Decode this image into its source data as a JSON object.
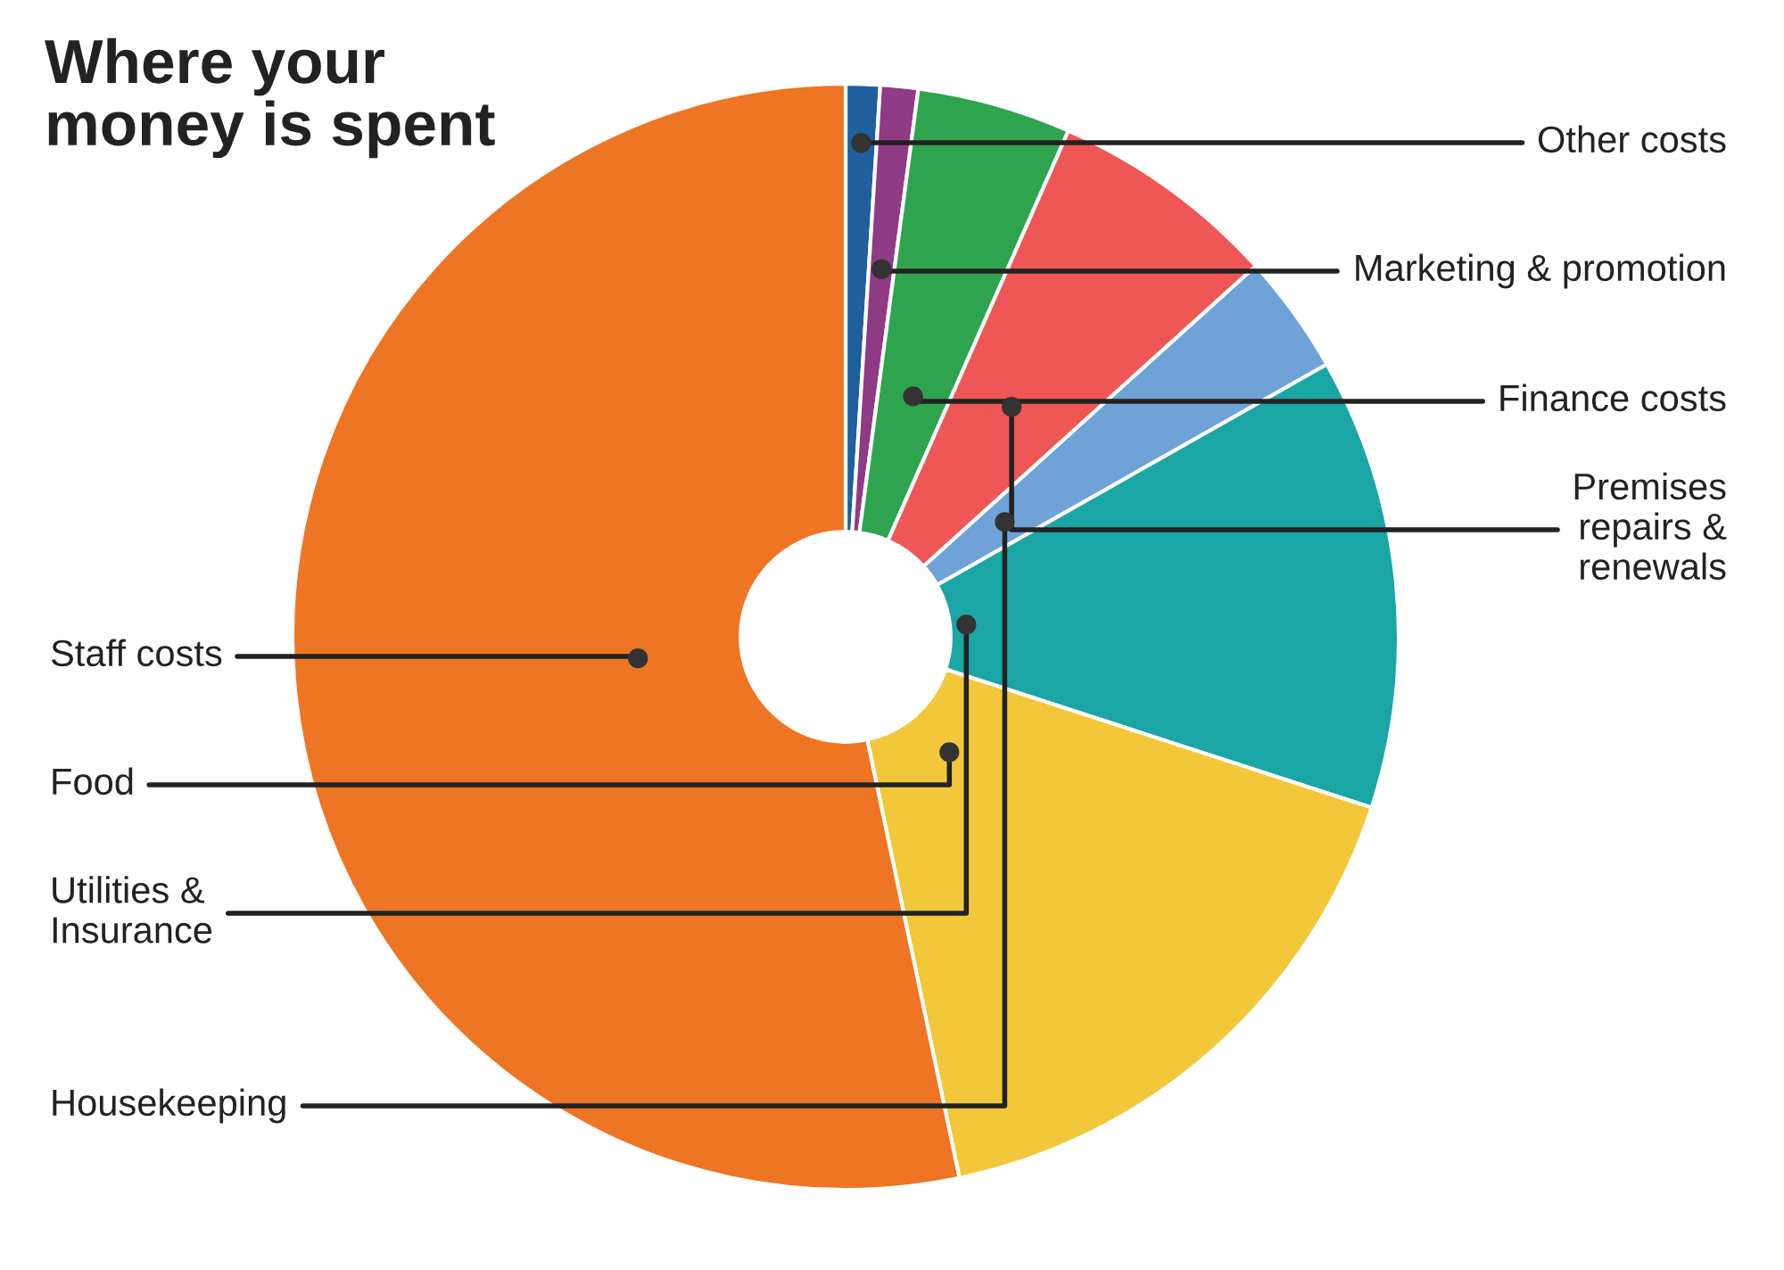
{
  "chart_data": {
    "type": "donut",
    "title": "Where your\nmoney is spent",
    "categories": [
      "Other costs",
      "Marketing & promotion",
      "Finance costs",
      "Premises\nrepairs &\nrenewals",
      "Housekeeping",
      "Utilities &\nInsurance",
      "Food",
      "Staff costs"
    ],
    "values": [
      1.0,
      1.1,
      4.5,
      6.7,
      3.5,
      13.2,
      16.7,
      53.3
    ],
    "colors": [
      "#1f5f9e",
      "#8e3a85",
      "#2ea44f",
      "#ef5656",
      "#6fa3d8",
      "#1aa6a4",
      "#f2c73a",
      "#ee7523"
    ]
  }
}
